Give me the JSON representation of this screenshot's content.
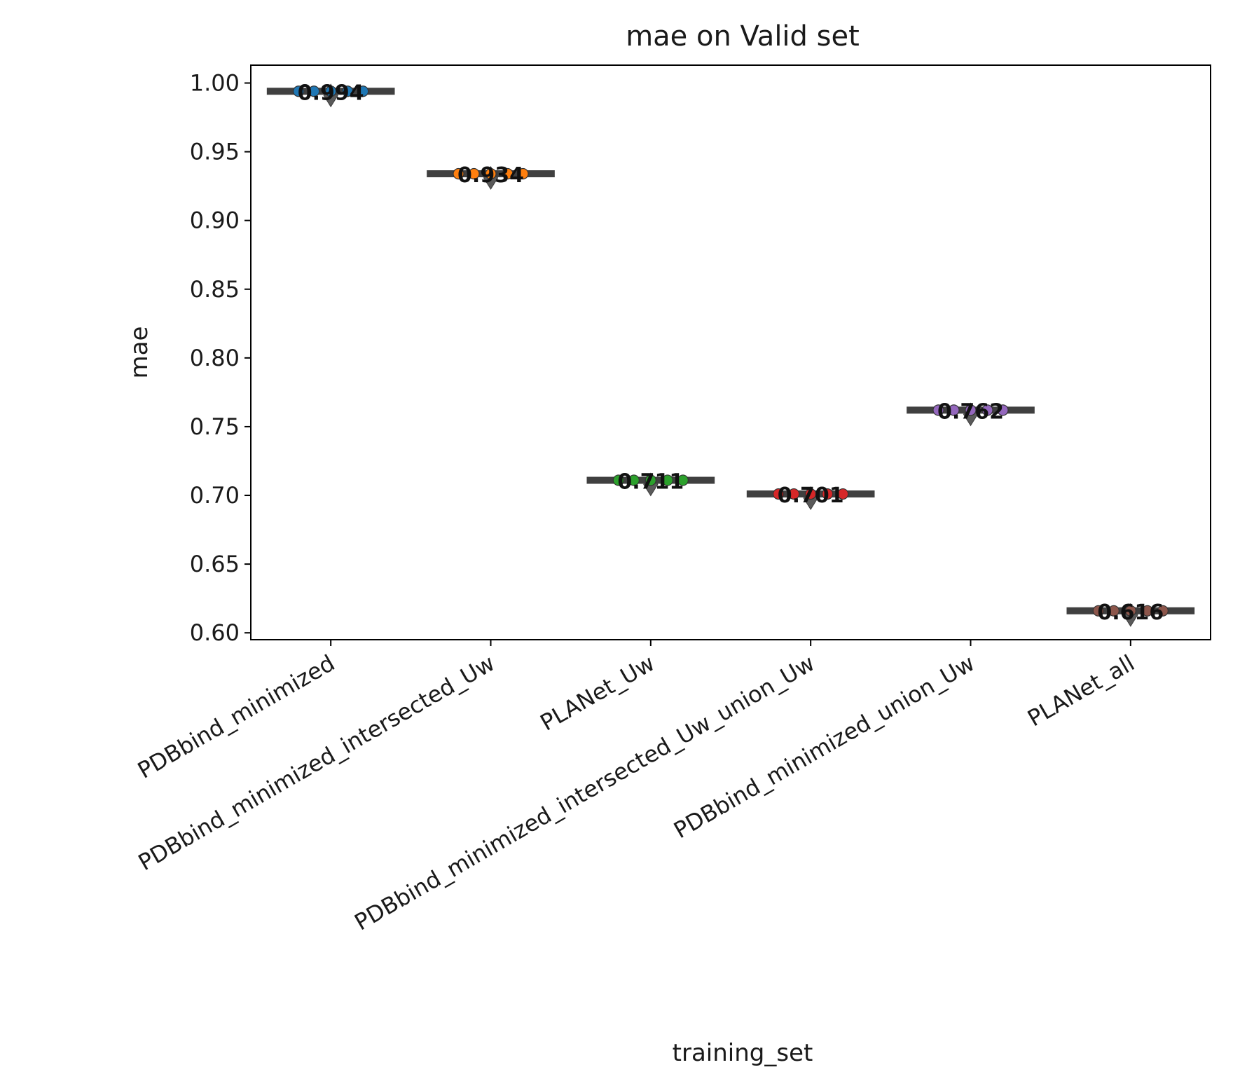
{
  "chart_data": {
    "type": "box",
    "title": "mae on Valid set",
    "xlabel": "training_set",
    "ylabel": "mae",
    "ylim": [
      0.595,
      1.013
    ],
    "yticks": [
      "0.60",
      "0.65",
      "0.70",
      "0.75",
      "0.80",
      "0.85",
      "0.90",
      "0.95",
      "1.00"
    ],
    "grid": false,
    "categories": [
      "PDBbind_minimized",
      "PDBbind_minimized_intersected_Uw",
      "PLANet_Uw",
      "PDBbind_minimized_intersected_Uw_union_Uw",
      "PDBbind_minimized_union_Uw",
      "PLANet_all"
    ],
    "values": [
      0.994,
      0.934,
      0.711,
      0.701,
      0.762,
      0.616
    ],
    "value_labels": [
      "0.994",
      "0.934",
      "0.711",
      "0.701",
      "0.762",
      "0.616"
    ],
    "colors": [
      "#1f77b4",
      "#ff7f0e",
      "#2ca02c",
      "#d62728",
      "#9467bd",
      "#8c564b"
    ]
  }
}
